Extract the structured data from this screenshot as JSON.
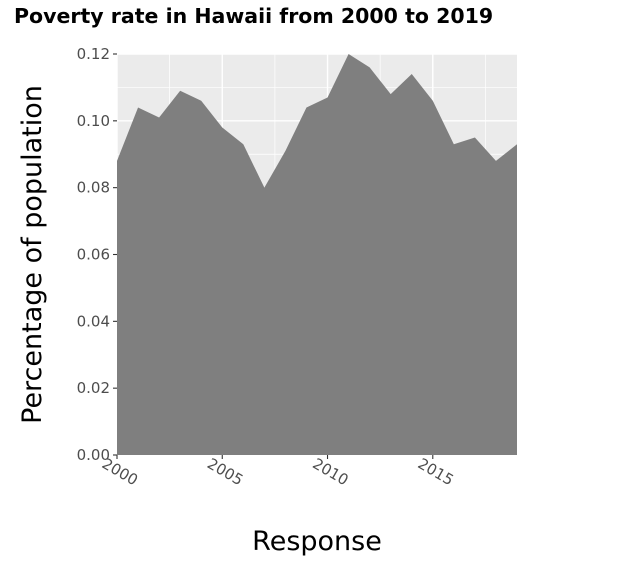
{
  "chart_data": {
    "type": "area",
    "title": "Poverty rate in Hawaii from 2000 to 2019",
    "xlabel": "Response",
    "ylabel": "Percentage of population",
    "xlim": [
      2000,
      2019
    ],
    "ylim": [
      0,
      0.12
    ],
    "x_ticks": [
      "2000",
      "2005",
      "2010",
      "2015"
    ],
    "y_ticks": [
      "0.00",
      "0.02",
      "0.04",
      "0.06",
      "0.08",
      "0.10",
      "0.12"
    ],
    "grid": true,
    "x": [
      2000,
      2001,
      2002,
      2003,
      2004,
      2005,
      2006,
      2007,
      2008,
      2009,
      2010,
      2011,
      2012,
      2013,
      2014,
      2015,
      2016,
      2017,
      2018,
      2019
    ],
    "series": [
      {
        "values": [
          0.088,
          0.104,
          0.101,
          0.109,
          0.106,
          0.098,
          0.093,
          0.08,
          0.091,
          0.104,
          0.107,
          0.12,
          0.116,
          0.108,
          0.114,
          0.106,
          0.093,
          0.095,
          0.088,
          0.093
        ]
      }
    ],
    "colors": {
      "panel": "#ebebeb",
      "grid": "#ffffff",
      "area": "#7f7f7f",
      "tick_text": "#4d4d4d",
      "tick_mark": "#333333"
    }
  }
}
